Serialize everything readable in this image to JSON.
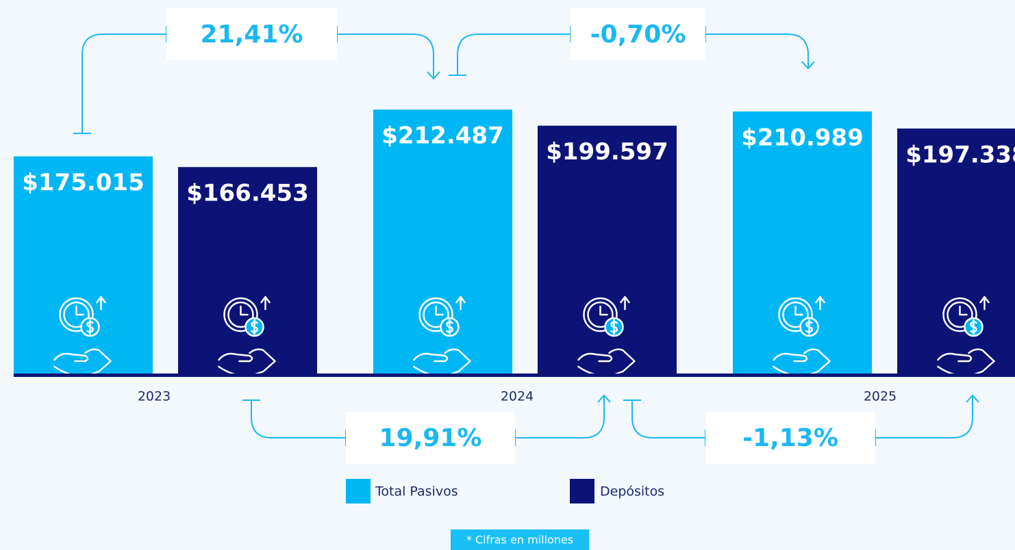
{
  "chart_data": {
    "type": "bar",
    "categories": [
      "2023",
      "2024",
      "2025"
    ],
    "series": [
      {
        "name": "Total Pasivos",
        "color": "#00b6f4",
        "values": [
          175015,
          212487,
          210989
        ],
        "value_labels": [
          "$175.015",
          "$212.487",
          "$210.989"
        ]
      },
      {
        "name": "Depósitos",
        "color": "#0b1476",
        "values": [
          166453,
          199597,
          197338
        ],
        "value_labels": [
          "$166.453",
          "$199.597",
          "$197.338"
        ]
      }
    ],
    "ylim": [
      0,
      240000
    ],
    "annotations": [
      "21,41%",
      "-0,70%",
      "19,91%",
      "-1,13%"
    ],
    "note": "* Cifras en millones"
  }
}
